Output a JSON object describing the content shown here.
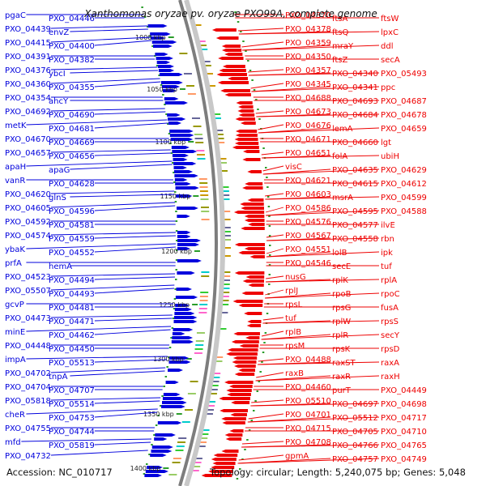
{
  "title": "Xanthomonas oryzae pv. oryzae PXO99A, complete genome",
  "accession": "Accession: NC_010717",
  "topology": "Topology: circular; Length: 5,240,075 bp; Genes: 5,048",
  "colors": {
    "forward": "#0000dd",
    "reverse": "#ee0000",
    "backbone": "#888888",
    "tick": "#2a9d2a"
  },
  "scale_labels": [
    "1000 kbp",
    "1050 kbp",
    "1100 kbp",
    "1150 kbp",
    "1200 kbp",
    "1250 kbp",
    "1300 kbp",
    "1350 kbp",
    "1400 kbp"
  ],
  "left_labels": [
    "pgaC",
    "PXO_04446",
    "PXO_04439",
    "envZ",
    "PXO_04415",
    "PXO_04400",
    "PXO_04391",
    "PXO_04382",
    "PXO_04376",
    "ybcI",
    "PXO_04360",
    "PXO_04355",
    "PXO_04354",
    "ahcY",
    "PXO_04692",
    "PXO_04690",
    "metK",
    "PXO_04681",
    "PXO_04670",
    "PXO_04669",
    "PXO_04657",
    "PXO_04656",
    "apaH",
    "apaG",
    "vanR",
    "PXO_04628",
    "PXO_04620",
    "glnS",
    "PXO_04605",
    "PXO_04596",
    "PXO_04592",
    "PXO_04581",
    "PXO_04574",
    "PXO_04559",
    "ybaK",
    "PXO_04552",
    "prfA",
    "hemA",
    "PXO_04523",
    "PXO_04494",
    "PXO_05507",
    "PXO_04493",
    "gcvP",
    "PXO_04481",
    "PXO_04473",
    "PXO_04471",
    "minE",
    "PXO_04462",
    "PXO_04448",
    "PXO_04450",
    "impA",
    "PXO_05513",
    "PXO_04702",
    "tnpA",
    "PXO_04704",
    "PXO_04707",
    "PXO_05818",
    "PXO_05514",
    "cheR",
    "PXO_04753",
    "PXO_04755",
    "PXO_04744",
    "mfd",
    "PXO_05819",
    "PXO_04732"
  ],
  "right_labels": [
    "PXO_04370",
    "ftsA",
    "ftsW",
    "PXO_04378",
    "ftsQ",
    "lpxC",
    "PXO_04359",
    "mraY",
    "ddl",
    "PXO_04350",
    "ftsZ",
    "secA",
    "PXO_04357",
    "PXO_04340",
    "PXO_05493",
    "PXO_04345",
    "PXO_04341",
    "ppc",
    "PXO_04688",
    "PXO_04693",
    "PXO_04687",
    "PXO_04673",
    "PXO_04684",
    "PXO_04678",
    "PXO_04676",
    "lemA",
    "PXO_04659",
    "PXO_04671",
    "PXO_04660",
    "lgt",
    "PXO_04651",
    "folA",
    "ubiH",
    "visC",
    "PXO_04635",
    "PXO_04629",
    "PXO_04621",
    "PXO_04615",
    "PXO_04612",
    "PXO_04603",
    "msrA",
    "PXO_04599",
    "PXO_04586",
    "PXO_04595",
    "PXO_04588",
    "PXO_04576",
    "PXO_04577",
    "ilvE",
    "PXO_04567",
    "PXO_04558",
    "rbn",
    "PXO_04551",
    "lolB",
    "ipk",
    "PXO_04546",
    "secE",
    "tuf",
    "nusG",
    "rplK",
    "rplA",
    "rplJ",
    "rpoB",
    "rpoC",
    "rpsL",
    "rpsG",
    "fusA",
    "tuf",
    "rplW",
    "rpsS",
    "rplB",
    "rplR",
    "secY",
    "rpsM",
    "rpsK",
    "rpsD",
    "PXO_04488",
    "raxST",
    "raxA",
    "raxB",
    "raxR",
    "raxH",
    "PXO_04460",
    "purT",
    "PXO_04449",
    "PXO_05510",
    "PXO_04697",
    "PXO_04698",
    "PXO_04701",
    "PXO_05512",
    "PXO_04717",
    "PXO_04715",
    "PXO_04705",
    "PXO_04710",
    "PXO_04708",
    "PXO_04766",
    "PXO_04765",
    "gpmA",
    "PXO_04757",
    "PXO_04749"
  ]
}
